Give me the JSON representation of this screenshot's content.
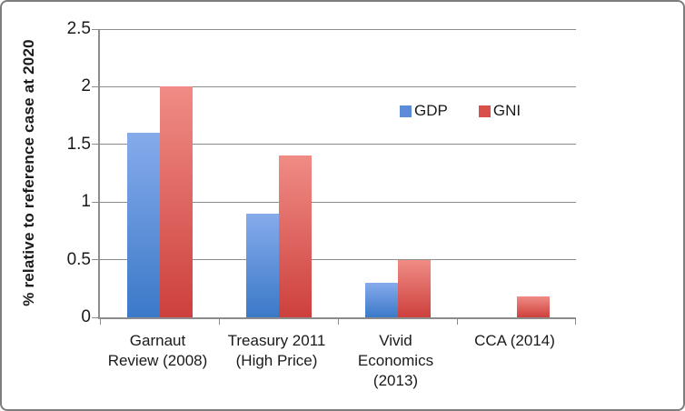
{
  "chart_data": {
    "type": "bar",
    "title": "",
    "xlabel": "",
    "ylabel": "% relative to reference case at 2020",
    "ylim": [
      0,
      2.5
    ],
    "ytick_values": [
      0,
      0.5,
      1,
      1.5,
      2,
      2.5
    ],
    "ytick_labels": [
      "0",
      "0.5",
      "1",
      "1.5",
      "2",
      "2.5"
    ],
    "categories": [
      "Garnaut\nReview (2008)",
      "Treasury 2011\n(High Price)",
      "Vivid\nEconomics\n(2013)",
      "CCA (2014)"
    ],
    "series": [
      {
        "name": "GDP",
        "values": [
          1.6,
          0.9,
          0.3,
          0
        ],
        "color": "#5b8bd9",
        "gradient_top": "#86abeb",
        "gradient_bottom": "#3b79c8"
      },
      {
        "name": "GNI",
        "values": [
          2.0,
          1.4,
          0.5,
          0.18
        ],
        "color": "#d9504b",
        "gradient_top": "#f08c85",
        "gradient_bottom": "#cd403d"
      }
    ],
    "legend": {
      "position": "inside-top-right",
      "entries": [
        "GDP",
        "GNI"
      ]
    },
    "grid": true,
    "colors": {
      "gridline": "#8c8c8c",
      "axis": "#8c8c8c",
      "frame_border": "#7d7d7d",
      "text": "#1a1a1a"
    }
  }
}
